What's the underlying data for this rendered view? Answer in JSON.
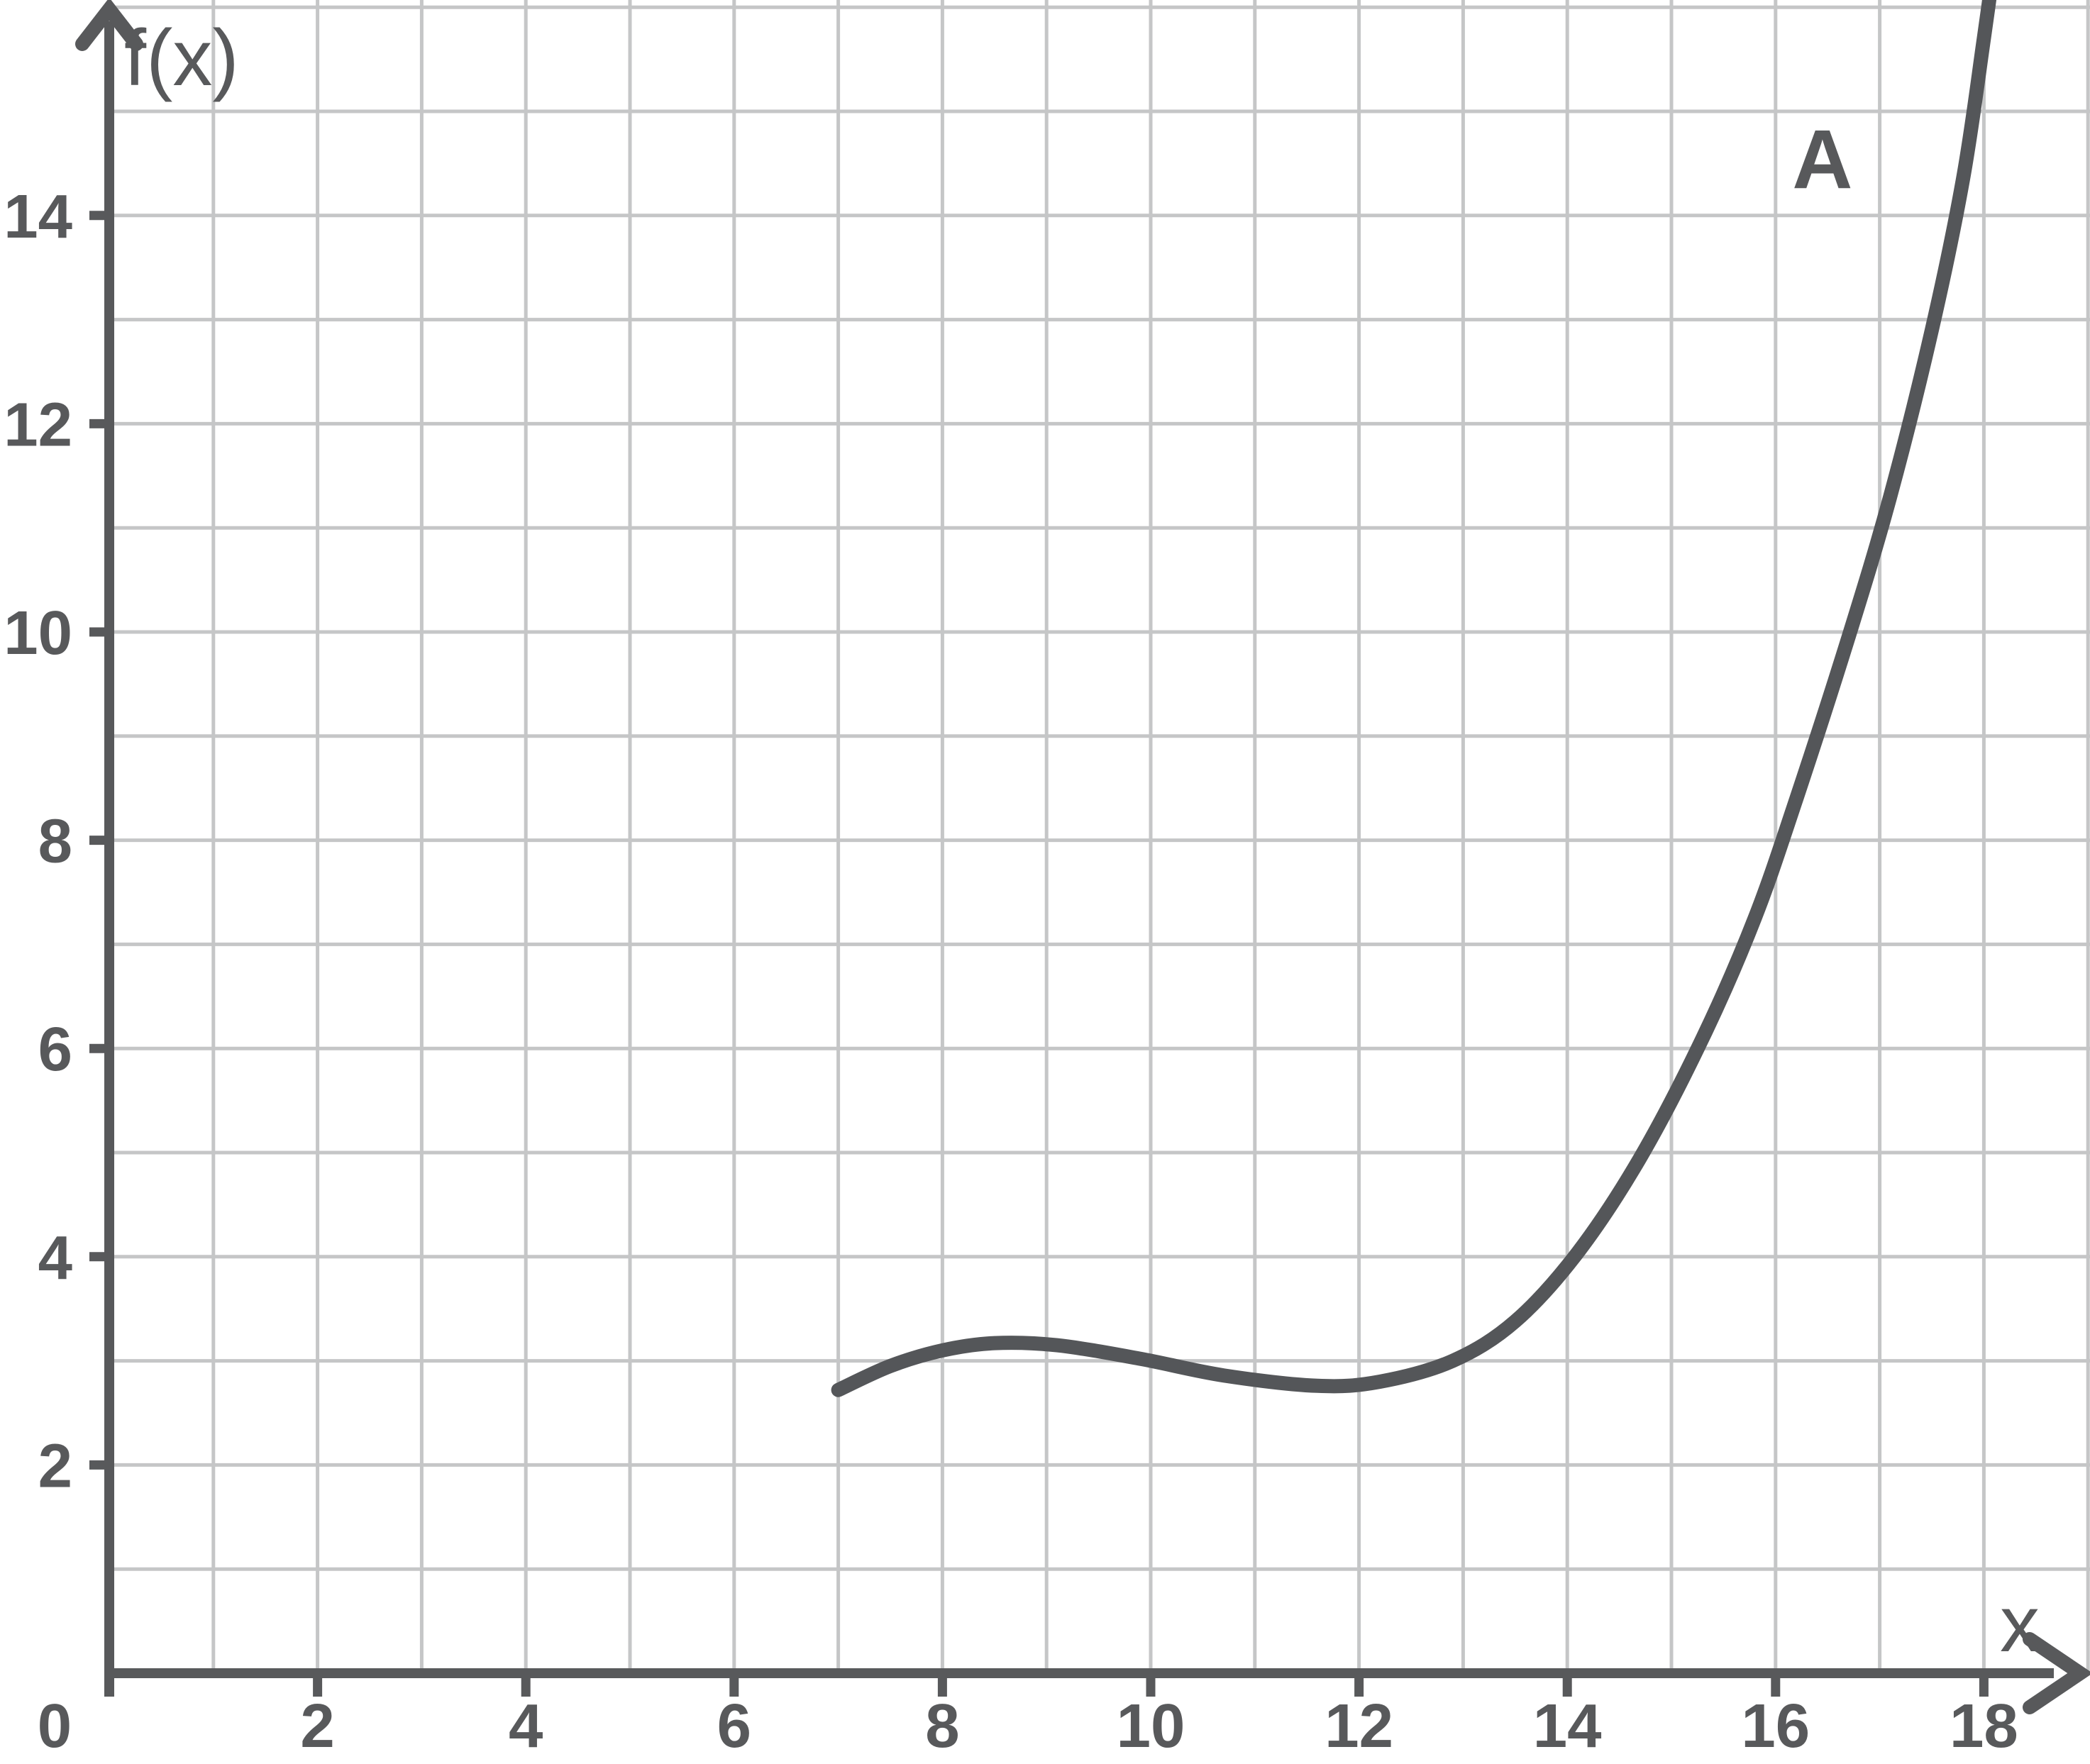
{
  "figure": {
    "title": "",
    "background_color": "#ffffff"
  },
  "colors": {
    "axis": "#58595b",
    "tick_label": "#58595b",
    "grid": "#c5c6c7",
    "curve": "#545659",
    "annotation": "#58595b",
    "background": "#ffffff"
  },
  "chart_data": {
    "type": "line",
    "title": "",
    "xlabel": "x",
    "ylabel": "f(x)",
    "xlim": [
      0,
      19
    ],
    "ylim": [
      0,
      16.1
    ],
    "grid": true,
    "grid_step": 1,
    "x_tick_labels": [
      "0",
      "2",
      "4",
      "6",
      "8",
      "10",
      "12",
      "14",
      "16",
      "18"
    ],
    "y_tick_labels": [
      "2",
      "4",
      "6",
      "8",
      "10",
      "12",
      "14"
    ],
    "legend_position": "none",
    "series": [
      {
        "name": "A",
        "points": [
          [
            7.0,
            2.72
          ],
          [
            7.5,
            2.95
          ],
          [
            8.0,
            3.1
          ],
          [
            8.5,
            3.17
          ],
          [
            9.1,
            3.15
          ],
          [
            9.9,
            3.02
          ],
          [
            10.7,
            2.86
          ],
          [
            11.6,
            2.76
          ],
          [
            12.2,
            2.8
          ],
          [
            12.9,
            3.0
          ],
          [
            13.5,
            3.38
          ],
          [
            14.1,
            4.04
          ],
          [
            14.7,
            4.95
          ],
          [
            15.3,
            6.1
          ],
          [
            15.8,
            7.25
          ],
          [
            16.2,
            8.4
          ],
          [
            16.7,
            9.95
          ],
          [
            17.1,
            11.3
          ],
          [
            17.5,
            12.9
          ],
          [
            17.8,
            14.35
          ],
          [
            18.0,
            15.7
          ],
          [
            18.15,
            16.8
          ]
        ],
        "local_max": [
          8.5,
          3.17
        ],
        "local_min": [
          11.6,
          2.76
        ]
      }
    ],
    "annotations": [
      {
        "text": "A",
        "x": 16.45,
        "y": 14.55
      }
    ]
  }
}
